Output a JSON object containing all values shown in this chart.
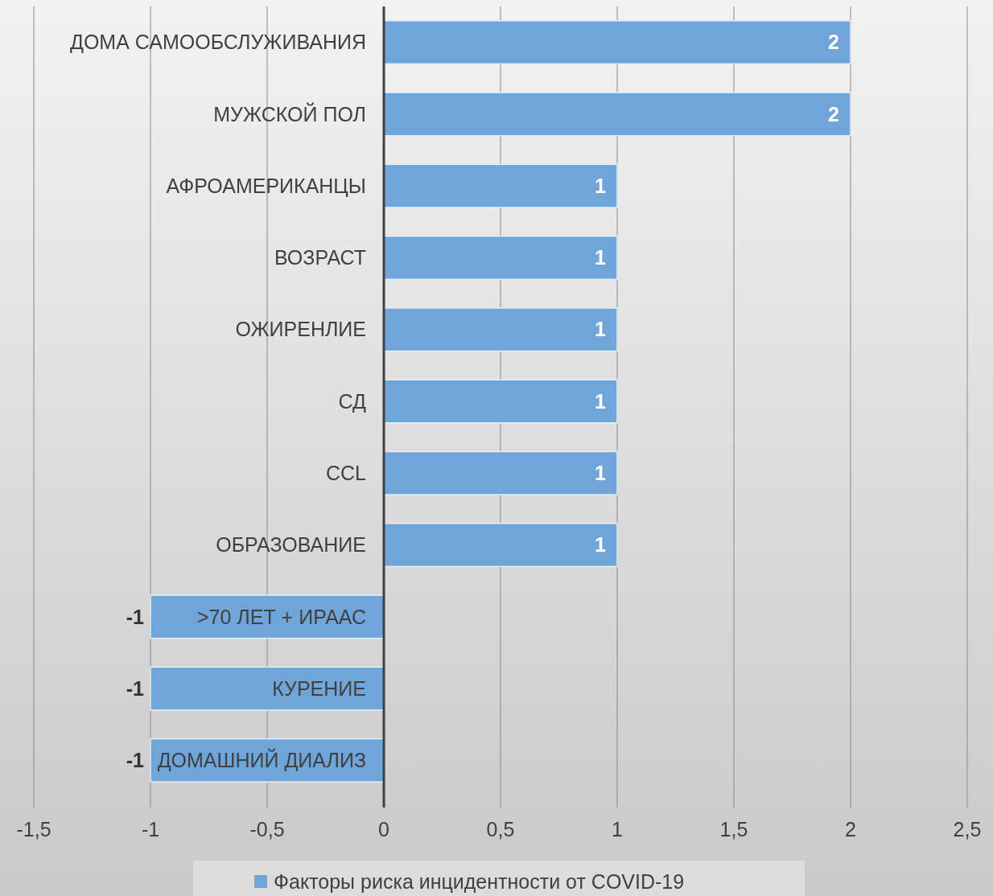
{
  "chart_data": {
    "type": "bar",
    "orientation": "horizontal",
    "categories": [
      "ДОМА САМООБСЛУЖИВАНИЯ",
      "МУЖСКОЙ ПОЛ",
      "АФРОАМЕРИКАНЦЫ",
      "ВОЗРАСТ",
      "ОЖИРЕНЛИЕ",
      "СД",
      "CCL",
      "ОБРАЗОВАНИЕ",
      ">70 ЛЕТ + ИРААС",
      "КУРЕНИЕ",
      "ДОМАШНИЙ ДИАЛИЗ"
    ],
    "series": [
      {
        "name": "Факторы риска инцидентности от COVID-19",
        "color": "#6fa5d8",
        "values": [
          2,
          2,
          1,
          1,
          1,
          1,
          1,
          1,
          -1,
          -1,
          -1
        ]
      }
    ],
    "xlim": [
      -1.5,
      2.5
    ],
    "xticks": [
      {
        "value": -1.5,
        "label": "-1,5"
      },
      -1,
      {
        "value": -0.5,
        "label": "-0,5"
      },
      0,
      {
        "value": 0.5,
        "label": "0,5"
      },
      1,
      {
        "value": 1.5,
        "label": "1,5"
      },
      2,
      {
        "value": 2.5,
        "label": "2,5"
      }
    ],
    "grid": "x",
    "data_labels": true,
    "legend": "bottom"
  }
}
